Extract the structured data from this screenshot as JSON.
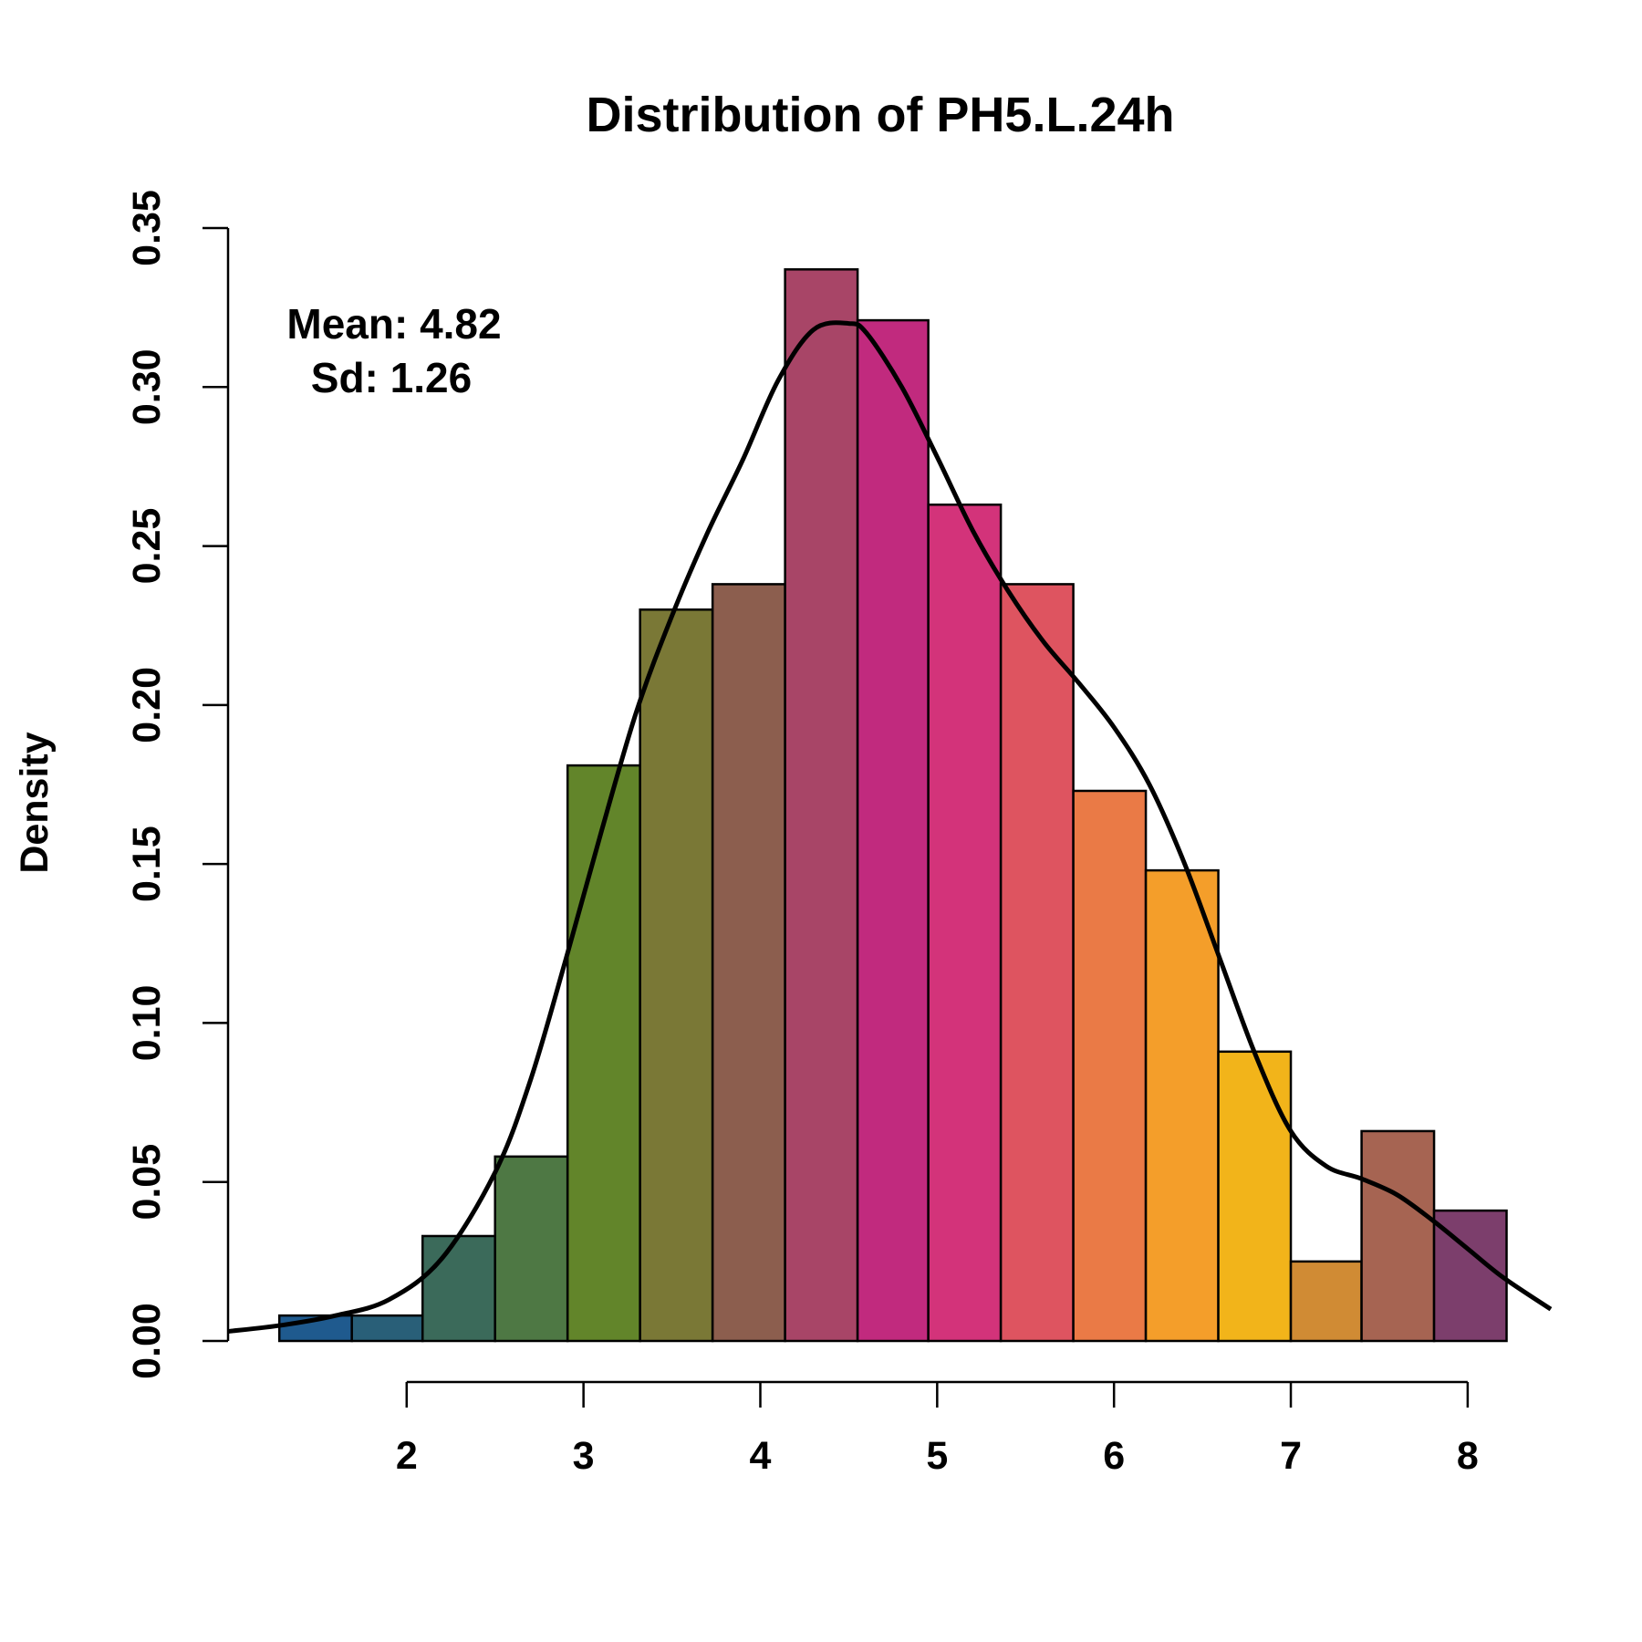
{
  "chart_data": {
    "type": "bar",
    "subtype": "histogram-with-density",
    "title": "Distribution of PH5.L.24h",
    "xlabel": "",
    "ylabel": "Density",
    "xlim": [
      0.99,
      8.47
    ],
    "ylim": [
      0,
      0.35
    ],
    "x_ticks": [
      2,
      3,
      4,
      5,
      6,
      7,
      8
    ],
    "y_ticks": [
      "0.00",
      "0.05",
      "0.10",
      "0.15",
      "0.20",
      "0.25",
      "0.30",
      "0.35"
    ],
    "grid": false,
    "legend": "none",
    "annotations": {
      "mean_text": "Mean: 4.82",
      "sd_text": "Sd: 1.26"
    },
    "bins": [
      {
        "x0": 1.28,
        "x1": 1.69,
        "value": 0.008,
        "color": "#1f5a8e"
      },
      {
        "x0": 1.69,
        "x1": 2.09,
        "value": 0.008,
        "color": "#295f78"
      },
      {
        "x0": 2.09,
        "x1": 2.5,
        "value": 0.033,
        "color": "#3b6a5a"
      },
      {
        "x0": 2.5,
        "x1": 2.91,
        "value": 0.058,
        "color": "#4e7844"
      },
      {
        "x0": 2.91,
        "x1": 3.32,
        "value": 0.181,
        "color": "#62852a"
      },
      {
        "x0": 3.32,
        "x1": 3.73,
        "value": 0.23,
        "color": "#7a7836"
      },
      {
        "x0": 3.73,
        "x1": 4.14,
        "value": 0.238,
        "color": "#8c5e4e"
      },
      {
        "x0": 4.14,
        "x1": 4.55,
        "value": 0.337,
        "color": "#a84567"
      },
      {
        "x0": 4.55,
        "x1": 4.95,
        "value": 0.321,
        "color": "#c12a7e"
      },
      {
        "x0": 4.95,
        "x1": 5.36,
        "value": 0.263,
        "color": "#d3337a"
      },
      {
        "x0": 5.36,
        "x1": 5.77,
        "value": 0.238,
        "color": "#de5460"
      },
      {
        "x0": 5.77,
        "x1": 6.18,
        "value": 0.173,
        "color": "#ea7a46"
      },
      {
        "x0": 6.18,
        "x1": 6.59,
        "value": 0.148,
        "color": "#f49e2a"
      },
      {
        "x0": 6.59,
        "x1": 7.0,
        "value": 0.091,
        "color": "#f2b41a"
      },
      {
        "x0": 7.0,
        "x1": 7.4,
        "value": 0.025,
        "color": "#d08b34"
      },
      {
        "x0": 7.4,
        "x1": 7.81,
        "value": 0.066,
        "color": "#a66452"
      },
      {
        "x0": 7.81,
        "x1": 8.22,
        "value": 0.041,
        "color": "#7c3e6c"
      }
    ],
    "density_curve": {
      "x": [
        0.99,
        1.3,
        1.6,
        1.9,
        2.2,
        2.5,
        2.7,
        2.9,
        3.1,
        3.3,
        3.5,
        3.7,
        3.9,
        4.1,
        4.3,
        4.5,
        4.6,
        4.8,
        5.0,
        5.2,
        5.4,
        5.6,
        5.8,
        6.0,
        6.2,
        6.4,
        6.6,
        6.8,
        7.0,
        7.2,
        7.4,
        7.6,
        7.8,
        8.0,
        8.2,
        8.47
      ],
      "y": [
        0.003,
        0.005,
        0.008,
        0.013,
        0.026,
        0.053,
        0.082,
        0.12,
        0.16,
        0.198,
        0.228,
        0.254,
        0.277,
        0.302,
        0.318,
        0.32,
        0.317,
        0.3,
        0.278,
        0.255,
        0.236,
        0.22,
        0.207,
        0.193,
        0.175,
        0.15,
        0.12,
        0.09,
        0.066,
        0.055,
        0.051,
        0.046,
        0.038,
        0.029,
        0.02,
        0.01
      ]
    }
  }
}
